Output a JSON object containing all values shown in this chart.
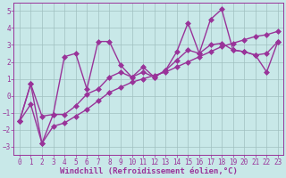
{
  "background_color": "#c8e8e8",
  "grid_color": "#a0c0c0",
  "line_color": "#993399",
  "xlabel": "Windchill (Refroidissement éolien,°C)",
  "xlim": [
    -0.5,
    23.5
  ],
  "ylim": [
    -3.5,
    5.5
  ],
  "yticks": [
    -3,
    -2,
    -1,
    0,
    1,
    2,
    3,
    4,
    5
  ],
  "xticks": [
    0,
    1,
    2,
    3,
    4,
    5,
    6,
    7,
    8,
    9,
    10,
    11,
    12,
    13,
    14,
    15,
    16,
    17,
    18,
    19,
    20,
    21,
    22,
    23
  ],
  "series1_x": [
    0,
    1,
    2,
    3,
    4,
    5,
    6,
    7,
    8,
    9,
    10,
    11,
    12,
    13,
    14,
    15,
    16,
    17,
    18,
    19,
    20,
    21,
    22,
    23
  ],
  "series1_y": [
    -1.5,
    0.7,
    -1.2,
    -1.1,
    2.3,
    2.5,
    0.4,
    3.2,
    3.2,
    1.8,
    1.1,
    1.7,
    1.1,
    1.5,
    2.6,
    4.3,
    2.5,
    4.5,
    5.1,
    2.7,
    2.6,
    2.4,
    1.4,
    3.2
  ],
  "series2_x": [
    0,
    1,
    2,
    3,
    4,
    5,
    6,
    7,
    8,
    9,
    10,
    11,
    12,
    13,
    14,
    15,
    16,
    17,
    18,
    19,
    20,
    21,
    22,
    23
  ],
  "series2_y": [
    -1.5,
    0.7,
    -2.8,
    -1.1,
    -1.1,
    -0.6,
    0.1,
    0.4,
    1.1,
    1.4,
    1.1,
    1.4,
    1.1,
    1.5,
    2.1,
    2.7,
    2.5,
    3.0,
    3.1,
    2.7,
    2.6,
    2.4,
    2.5,
    3.2
  ],
  "series3_x": [
    0,
    1,
    2,
    3,
    4,
    5,
    6,
    7,
    8,
    9,
    10,
    11,
    12,
    13,
    14,
    15,
    16,
    17,
    18,
    19,
    20,
    21,
    22,
    23
  ],
  "series3_y": [
    -1.5,
    -0.5,
    -2.8,
    -1.8,
    -1.6,
    -1.2,
    -0.8,
    -0.3,
    0.2,
    0.5,
    0.8,
    1.0,
    1.2,
    1.4,
    1.7,
    2.0,
    2.3,
    2.6,
    2.9,
    3.1,
    3.3,
    3.5,
    3.6,
    3.8
  ],
  "marker": "D",
  "markersize": 3,
  "linewidth": 1.0,
  "xlabel_fontsize": 6.5,
  "tick_fontsize": 5.5
}
